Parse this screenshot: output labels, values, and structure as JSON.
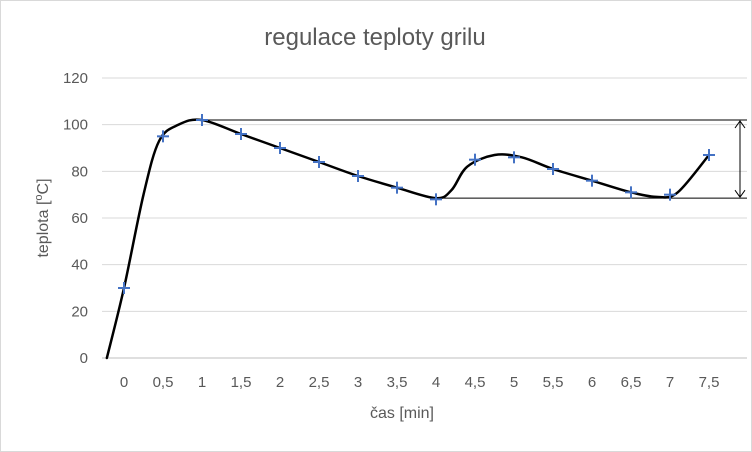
{
  "chart_data": {
    "type": "scatter",
    "title": "regulace teploty grilu",
    "xlabel": "čas [min]",
    "ylabel_main": "teplota [",
    "ylabel_sup": "o",
    "ylabel_tail": "C]",
    "categories": [
      "0",
      "0,5",
      "1",
      "1,5",
      "2",
      "2,5",
      "3",
      "3,5",
      "4",
      "4,5",
      "5",
      "5,5",
      "6",
      "6,5",
      "7",
      "7,5"
    ],
    "x": [
      0,
      0.5,
      1,
      1.5,
      2,
      2.5,
      3,
      3.5,
      4,
      4.5,
      5,
      5.5,
      6,
      6.5,
      7,
      7.5
    ],
    "series": [
      {
        "values": [
          30,
          95,
          102,
          96,
          90,
          84,
          78,
          73,
          68,
          85,
          86,
          81,
          76,
          71,
          70,
          87
        ],
        "marker": "plus",
        "color": "#4472c4"
      }
    ],
    "curve": {
      "color": "#000000",
      "points": [
        [
          -0.22,
          0
        ],
        [
          0,
          30
        ],
        [
          0.25,
          70
        ],
        [
          0.45,
          93
        ],
        [
          0.7,
          100
        ],
        [
          1,
          102
        ],
        [
          1.5,
          96
        ],
        [
          2,
          90
        ],
        [
          2.5,
          84
        ],
        [
          3,
          78
        ],
        [
          3.5,
          73
        ],
        [
          4,
          68.5
        ],
        [
          4.2,
          72
        ],
        [
          4.4,
          82
        ],
        [
          4.75,
          87
        ],
        [
          5.1,
          86
        ],
        [
          5.5,
          81
        ],
        [
          6,
          76
        ],
        [
          6.5,
          71
        ],
        [
          6.85,
          69
        ],
        [
          7.1,
          71
        ],
        [
          7.5,
          87
        ]
      ]
    },
    "annotation": {
      "upper_level": 102,
      "lower_level": 68.5
    },
    "ylim": [
      0,
      120
    ],
    "yticks": [
      0,
      20,
      40,
      60,
      80,
      100,
      120
    ],
    "grid": true,
    "legend": "none"
  }
}
